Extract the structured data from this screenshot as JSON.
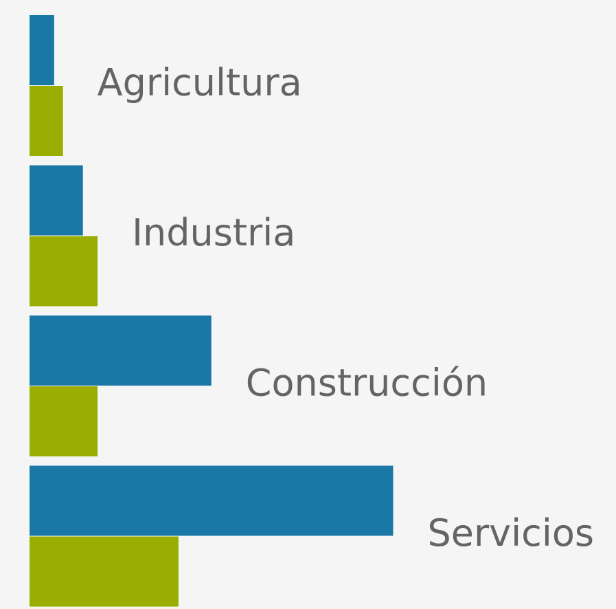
{
  "chart_data": {
    "type": "barh",
    "categories": [
      "Agricultura",
      "Industria",
      "Construcción",
      "Servicios"
    ],
    "series": [
      {
        "color": "#1a78a6",
        "values": [
          4.2,
          9.1,
          31,
          62
        ]
      },
      {
        "color": "#99ae00",
        "values": [
          5.7,
          11.6,
          11.6,
          25.4
        ]
      }
    ],
    "xlim": [
      0,
      100
    ]
  }
}
